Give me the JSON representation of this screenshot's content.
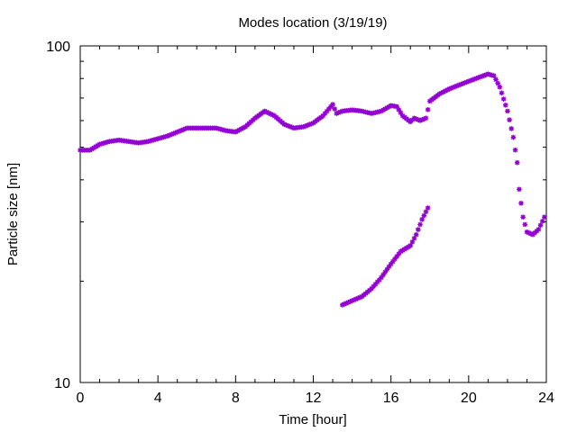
{
  "chart_data": {
    "type": "scatter",
    "title": "Modes location (3/19/19)",
    "xlabel": "Time [hour]",
    "ylabel": "Particle size [nm]",
    "xlim": [
      0,
      24
    ],
    "ylim": [
      10,
      100
    ],
    "yscale": "log",
    "grid": false,
    "legend": "none",
    "marker": "asterisk",
    "color": "#9400d3",
    "xticks": [
      0,
      4,
      8,
      12,
      16,
      20,
      24
    ],
    "xtick_labels": [
      "0",
      "4",
      "8",
      "12",
      "16",
      "20",
      "24"
    ],
    "yticks": [
      10,
      100
    ],
    "ytick_labels": [
      "10",
      "100"
    ],
    "series": [
      {
        "x": [
          0,
          0.5,
          1,
          1.5,
          2,
          2.5,
          3,
          3.5,
          4,
          4.5,
          5,
          5.5,
          6,
          6.5,
          7,
          7.5,
          8,
          8.5,
          9,
          9.5,
          10,
          10.5,
          11,
          11.5,
          12,
          12.5,
          13,
          13.2,
          13.5,
          14,
          14.5,
          15,
          15.5,
          16,
          16.3,
          16.6,
          17,
          17.2,
          17.5,
          17.8,
          18,
          18.5,
          19,
          19.5,
          20,
          20.5,
          21,
          21.3,
          21.6,
          22,
          22.3,
          22.5,
          22.6,
          22.8,
          23,
          23.3,
          23.6,
          23.9
        ],
        "y": [
          49,
          49,
          51,
          52,
          52.5,
          52,
          51.5,
          52,
          53,
          54,
          55.5,
          57,
          57,
          57,
          57,
          56,
          55.5,
          57.5,
          61,
          64,
          62,
          58.5,
          57,
          57.5,
          59,
          62,
          67,
          63,
          64,
          64.5,
          64,
          63,
          64,
          66.5,
          66,
          62,
          59.5,
          61,
          60,
          61,
          68.5,
          72,
          74.5,
          76.5,
          78.5,
          80.5,
          82.5,
          81.5,
          75.5,
          64,
          53.5,
          45,
          37.5,
          31,
          28,
          27.5,
          28.5,
          31
        ]
      },
      {
        "x": [
          13.5,
          14,
          14.5,
          15,
          15.5,
          16,
          16.5,
          17,
          17.3,
          17.6,
          17.9
        ],
        "y": [
          17,
          17.5,
          18,
          19,
          20.5,
          22.5,
          24.5,
          25.5,
          27.5,
          30.5,
          33
        ]
      }
    ]
  }
}
